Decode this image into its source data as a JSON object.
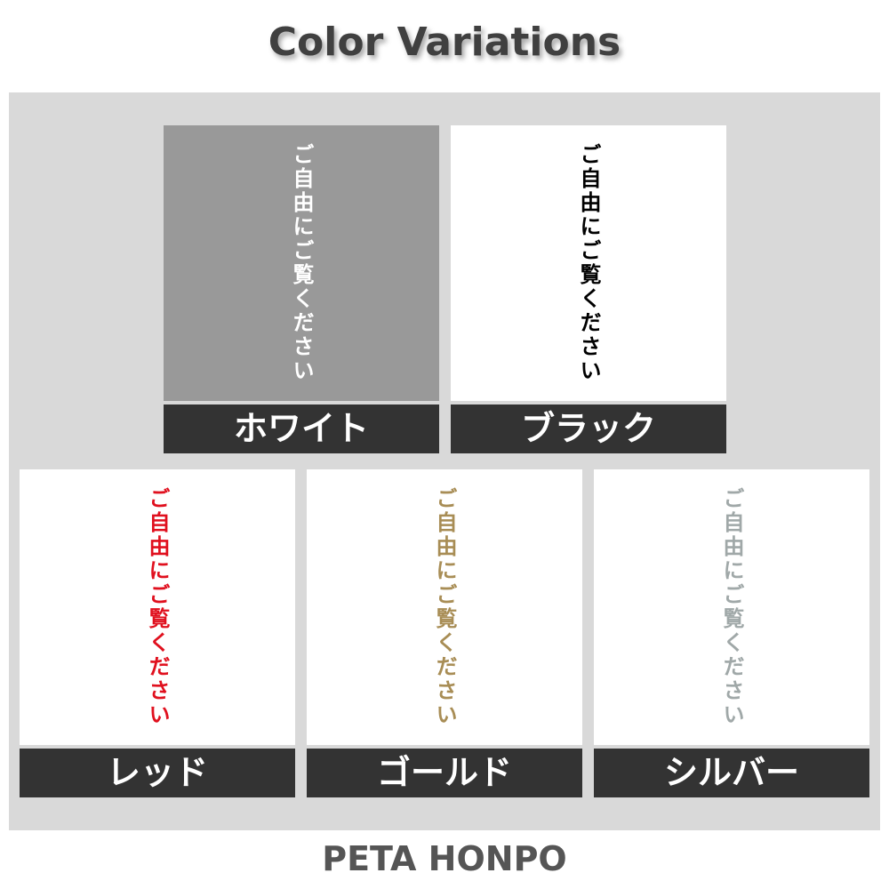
{
  "title": "Color Variations",
  "sample_text": "ご自由にご覧ください",
  "variants": [
    {
      "label": "ホワイト",
      "text_color": "#ffffff",
      "background": "#999999"
    },
    {
      "label": "ブラック",
      "text_color": "#000000",
      "background": "#ffffff"
    },
    {
      "label": "レッド",
      "text_color": "#e0101e",
      "background": "#ffffff"
    },
    {
      "label": "ゴールド",
      "text_color": "#a88d55",
      "background": "#ffffff"
    },
    {
      "label": "シルバー",
      "text_color": "#a0a8a8",
      "background": "#ffffff"
    }
  ],
  "brand": "PETA HONPO"
}
